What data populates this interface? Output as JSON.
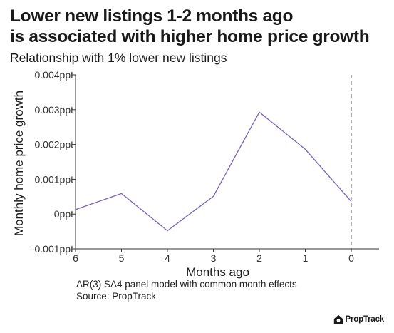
{
  "title_line1": "Lower new listings 1-2 months ago",
  "title_line2": "is associated with higher home price growth",
  "subtitle": "Relationship with 1% lower new listings",
  "footnotes": [
    "AR(3) SA4 panel model with common month effects",
    "Source: PropTrack"
  ],
  "brand": {
    "name": "PropTrack",
    "icon": "house-logo-icon"
  },
  "colors": {
    "line": "#7b64b3",
    "axis": "#333333",
    "reference": "#777777"
  },
  "chart_data": {
    "type": "line",
    "xlabel": "Months ago",
    "ylabel": "Monthly home price growth",
    "x": [
      6,
      5,
      4,
      3,
      2,
      1,
      0
    ],
    "x_reversed": true,
    "xticks": [
      "6",
      "5",
      "4",
      "3",
      "2",
      "1",
      "0"
    ],
    "values": [
      0.00013,
      0.00059,
      -0.00048,
      0.00051,
      0.00293,
      0.00186,
      0.00036
    ],
    "ylim": [
      -0.001,
      0.004
    ],
    "yticks": [
      -0.001,
      0,
      0.001,
      0.002,
      0.003,
      0.004
    ],
    "ytick_labels": [
      "-0.001ppt",
      "0ppt",
      "0.001ppt",
      "0.002ppt",
      "0.003ppt",
      "0.004ppt"
    ],
    "reference_line_x": 0,
    "grid": false,
    "legend": "none"
  }
}
